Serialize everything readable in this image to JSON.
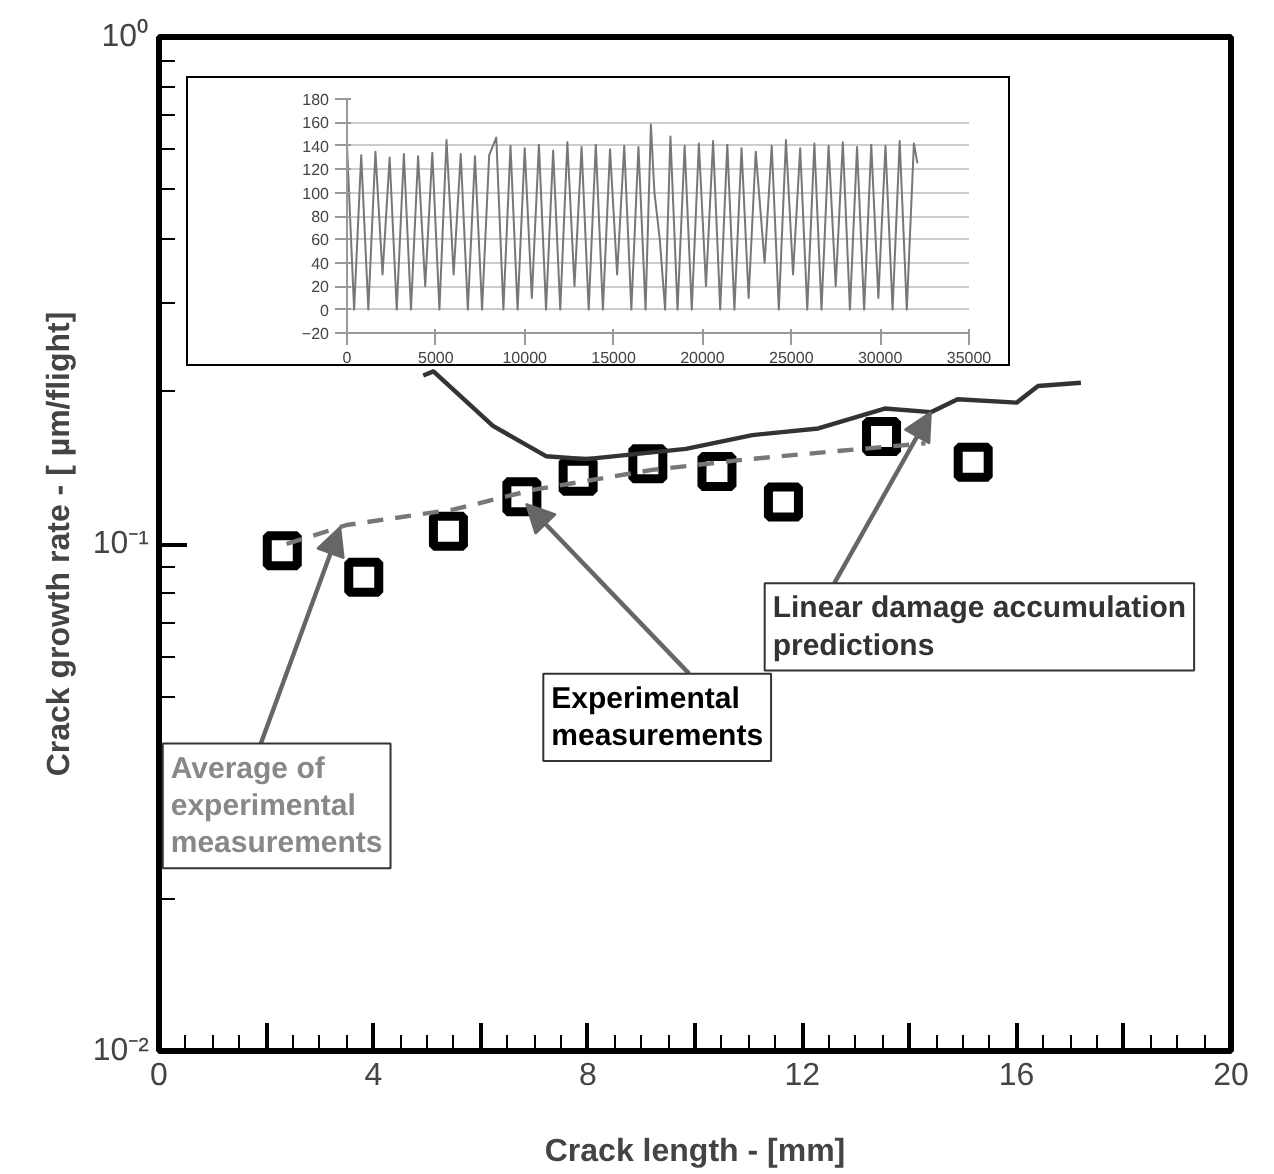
{
  "chart_data": [
    {
      "type": "scatter",
      "xlabel": "Crack length - [mm]",
      "ylabel": "Crack growth rate - [ µm/flight]",
      "log": "y",
      "grid": false,
      "xlim": [
        0,
        20
      ],
      "ylim": [
        0.01,
        1
      ],
      "xticks": [
        0,
        {
          "value": 2,
          "label": null
        },
        4,
        {
          "value": 6,
          "label": null
        },
        8,
        {
          "value": 10,
          "label": null
        },
        12,
        {
          "value": 14,
          "label": null
        },
        16,
        {
          "value": 18,
          "label": null
        },
        20
      ],
      "yticks": [
        {
          "value": 0.01,
          "label": "10⁻²"
        },
        {
          "value": 0.1,
          "label": "10⁻¹"
        },
        {
          "value": 1,
          "label": "10⁰"
        }
      ],
      "series": [
        {
          "type": "scatter",
          "marker": "square",
          "color": "#000000",
          "x": [
            2.3,
            3.82,
            5.4,
            6.77,
            7.82,
            9.12,
            10.41,
            11.65,
            13.48,
            15.19
          ],
          "values": [
            0.097,
            0.086,
            0.106,
            0.124,
            0.136,
            0.144,
            0.139,
            0.121,
            0.163,
            0.145
          ]
        },
        {
          "type": "line",
          "line_style": "dashed",
          "color": "#777777",
          "x": [
            2.38,
            3.5,
            5.5,
            7,
            9.2,
            11,
            12.5,
            14.3
          ],
          "values": [
            0.1,
            0.109,
            0.117,
            0.128,
            0.14,
            0.147,
            0.152,
            0.158
          ]
        },
        {
          "type": "line",
          "line_style": "solid",
          "color": "#333333",
          "x": [
            4.93,
            5.12,
            6.23,
            7.22,
            7.97,
            9.83,
            11.07,
            12.3,
            13.54,
            14.4,
            14.9,
            16.0,
            16.4,
            17.2
          ],
          "values": [
            0.215,
            0.219,
            0.171,
            0.149,
            0.147,
            0.154,
            0.164,
            0.169,
            0.185,
            0.182,
            0.193,
            0.19,
            0.205,
            0.208
          ]
        }
      ],
      "annotations": [
        {
          "text": "Linear damage accumulation predictions",
          "x": 14.4,
          "y": 0.182
        },
        {
          "text": "Experimental measurements",
          "x": 6.85,
          "y": 0.12
        },
        {
          "text": "Average of experimental measurements",
          "x": 3.38,
          "y": 0.108
        }
      ]
    },
    {
      "type": "line",
      "grid": "y",
      "xlim": [
        0,
        35000
      ],
      "ylim": [
        -20,
        180
      ],
      "xticks": [
        0,
        5000,
        10000,
        15000,
        20000,
        25000,
        30000,
        35000
      ],
      "yticks": [
        -20,
        0,
        20,
        40,
        60,
        80,
        100,
        120,
        140,
        160,
        180
      ],
      "series": [
        {
          "color": "#777777",
          "x": [
            0,
            400,
            800,
            1200,
            1600,
            2000,
            2400,
            2800,
            3200,
            3600,
            4000,
            4400,
            4800,
            5200,
            5600,
            6000,
            6400,
            6800,
            7200,
            7600,
            8000,
            8400,
            8800,
            9200,
            9600,
            10000,
            10400,
            10800,
            11200,
            11600,
            12000,
            12400,
            12800,
            13200,
            13600,
            14000,
            14400,
            14800,
            15200,
            15600,
            16000,
            16400,
            16800,
            17100,
            17300,
            17600,
            17900,
            18200,
            18600,
            19000,
            19400,
            19800,
            20200,
            20600,
            21000,
            21400,
            21800,
            22200,
            22600,
            23000,
            23500,
            23900,
            24300,
            24700,
            25100,
            25500,
            25900,
            26300,
            26700,
            27100,
            27500,
            27900,
            28300,
            28700,
            29100,
            29500,
            29900,
            30300,
            30700,
            31100,
            31500,
            31900,
            32100
          ],
          "values": [
            140,
            0,
            132,
            0,
            135,
            30,
            130,
            0,
            133,
            0,
            131,
            20,
            134,
            0,
            145,
            30,
            133,
            0,
            131,
            0,
            132,
            147,
            0,
            140,
            0,
            138,
            10,
            141,
            0,
            136,
            0,
            143,
            20,
            139,
            0,
            141,
            0,
            137,
            30,
            140,
            0,
            139,
            0,
            158,
            100,
            60,
            0,
            148,
            0,
            140,
            0,
            142,
            20,
            144,
            0,
            141,
            0,
            138,
            10,
            135,
            40,
            140,
            0,
            145,
            30,
            138,
            0,
            142,
            0,
            140,
            20,
            143,
            0,
            139,
            0,
            141,
            10,
            140,
            0,
            144,
            0,
            142,
            125
          ]
        }
      ]
    }
  ]
}
